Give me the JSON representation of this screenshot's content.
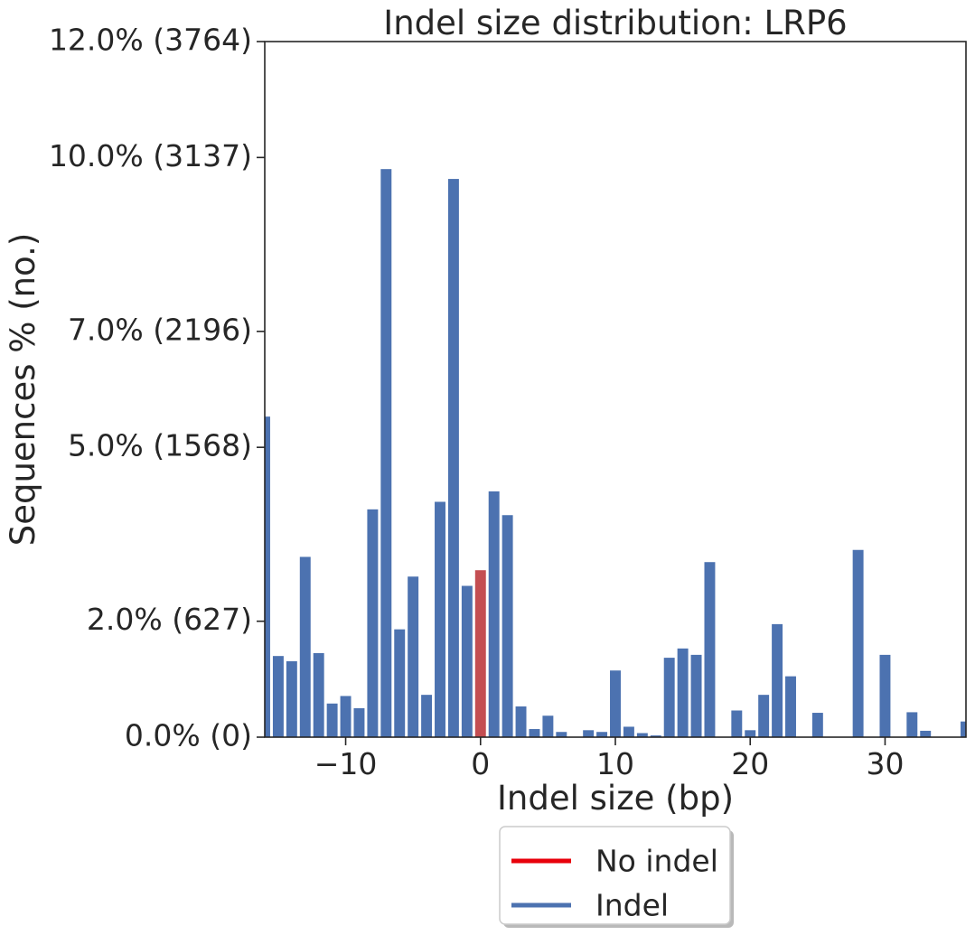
{
  "chart_data": {
    "type": "bar",
    "title": "Indel size distribution: LRP6",
    "xlabel": "Indel size (bp)",
    "ylabel": "Sequences % (no.)",
    "xlim": [
      -16,
      36
    ],
    "ylim": [
      0,
      12
    ],
    "xticks": [
      -10,
      0,
      10,
      20,
      30
    ],
    "xtick_labels": [
      "−10",
      "0",
      "10",
      "20",
      "30"
    ],
    "yticks": [
      0,
      2,
      5,
      7,
      10,
      12
    ],
    "ytick_labels": [
      "0.0% (0)",
      "2.0% (627)",
      "5.0% (1568)",
      "7.0% (2196)",
      "10.0% (3137)",
      "12.0% (3764)"
    ],
    "grid": false,
    "legend_position": "below",
    "colors": {
      "no_indel": "#c44e52",
      "indel": "#4c72b0",
      "legend_no_indel": "#e8000b"
    },
    "series": [
      {
        "name": "Indel",
        "x": [
          -16,
          -15,
          -14,
          -13,
          -12,
          -11,
          -10,
          -9,
          -8,
          -7,
          -6,
          -5,
          -4,
          -3,
          -2,
          -1,
          1,
          2,
          3,
          4,
          5,
          6,
          8,
          9,
          10,
          11,
          12,
          13,
          14,
          15,
          16,
          17,
          19,
          20,
          21,
          22,
          23,
          25,
          28,
          30,
          32,
          33,
          36
        ],
        "values": [
          5.53,
          1.4,
          1.31,
          3.11,
          1.45,
          0.58,
          0.71,
          0.5,
          3.93,
          9.8,
          1.86,
          2.77,
          0.73,
          4.06,
          9.63,
          2.61,
          4.24,
          3.83,
          0.53,
          0.14,
          0.37,
          0.09,
          0.12,
          0.09,
          1.15,
          0.18,
          0.07,
          0.03,
          1.37,
          1.53,
          1.42,
          3.02,
          0.46,
          0.12,
          0.73,
          1.95,
          1.05,
          0.42,
          3.23,
          1.42,
          0.43,
          0.11,
          0.27
        ]
      },
      {
        "name": "No indel",
        "x": [
          0
        ],
        "values": [
          2.88
        ]
      }
    ],
    "legend": [
      {
        "label": "No indel",
        "color_key": "legend_no_indel"
      },
      {
        "label": "Indel",
        "color_key": "indel"
      }
    ]
  }
}
